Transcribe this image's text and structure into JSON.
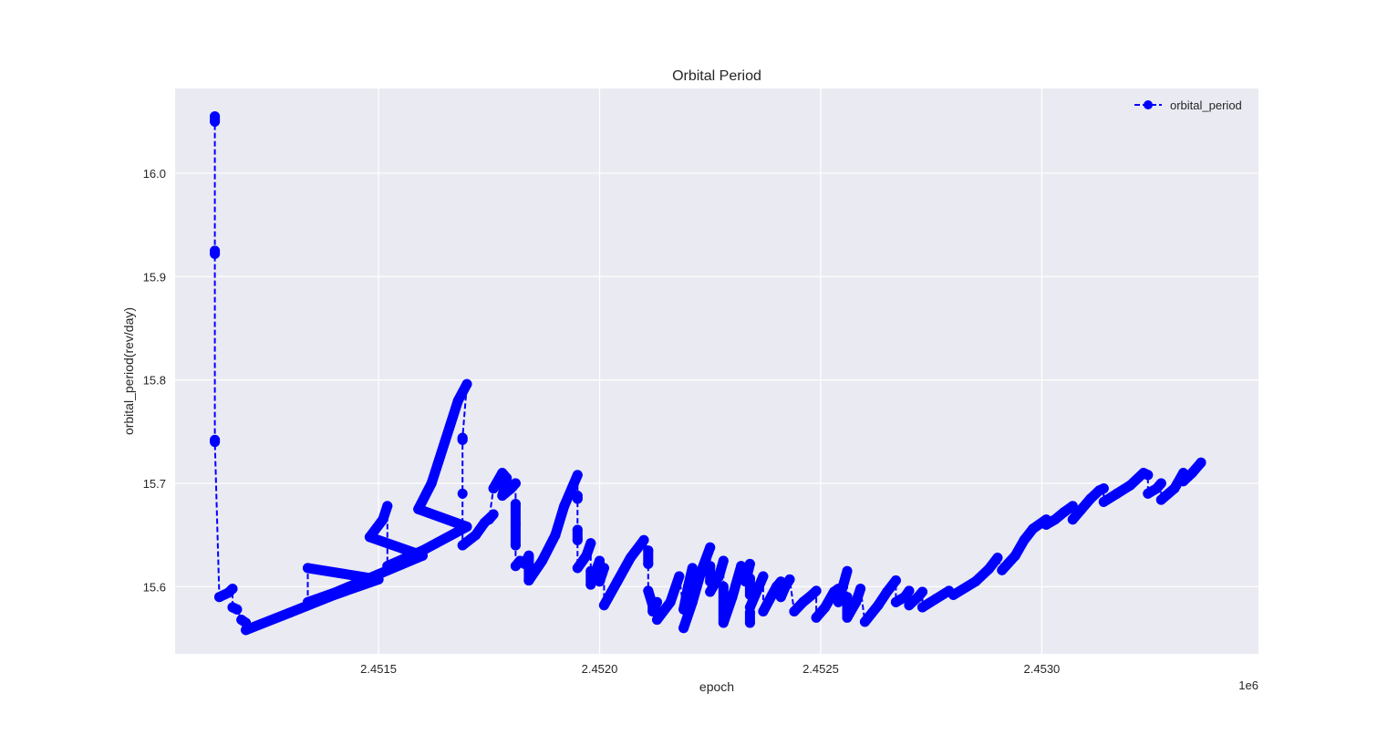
{
  "chart_data": {
    "type": "line",
    "title": "Orbital Period",
    "xlabel": "epoch",
    "ylabel": "orbital_period(rev/day)",
    "x_offset_label": "1e6",
    "x_scale_factor": 1000000,
    "xlim": [
      2.45104,
      2.45349
    ],
    "ylim": [
      15.535,
      16.082
    ],
    "x_ticks": [
      2.4515,
      2.452,
      2.4525,
      2.453
    ],
    "x_tick_labels": [
      "2.4515",
      "2.4520",
      "2.4525",
      "2.4530"
    ],
    "y_ticks": [
      15.6,
      15.7,
      15.8,
      15.9,
      16.0
    ],
    "y_tick_labels": [
      "15.6",
      "15.7",
      "15.8",
      "15.9",
      "16.0"
    ],
    "grid": true,
    "legend_position": "top-right",
    "series": [
      {
        "name": "orbital_period",
        "color": "#0000ff",
        "line_style": "dashed",
        "marker": "circle",
        "segments": [
          [
            [
              2.45113,
              16.055
            ],
            [
              2.45113,
              16.05
            ]
          ],
          [
            [
              2.45113,
              15.925
            ],
            [
              2.45113,
              15.922
            ]
          ],
          [
            [
              2.45113,
              15.742
            ],
            [
              2.45113,
              15.74
            ]
          ],
          [
            [
              2.45114,
              15.59
            ],
            [
              2.45116,
              15.594
            ],
            [
              2.45117,
              15.598
            ]
          ],
          [
            [
              2.45117,
              15.58
            ],
            [
              2.45118,
              15.578
            ]
          ],
          [
            [
              2.45119,
              15.568
            ],
            [
              2.4512,
              15.565
            ]
          ],
          [
            [
              2.4512,
              15.558
            ],
            [
              2.4513,
              15.575
            ],
            [
              2.4514,
              15.592
            ],
            [
              2.4515,
              15.607
            ],
            [
              2.45134,
              15.618
            ]
          ],
          [
            [
              2.45134,
              15.585
            ],
            [
              2.4514,
              15.594
            ],
            [
              2.4515,
              15.612
            ],
            [
              2.4516,
              15.63
            ],
            [
              2.45148,
              15.648
            ],
            [
              2.45151,
              15.665
            ],
            [
              2.45152,
              15.678
            ]
          ],
          [
            [
              2.45152,
              15.62
            ],
            [
              2.4516,
              15.635
            ],
            [
              2.4517,
              15.658
            ],
            [
              2.45159,
              15.675
            ],
            [
              2.45162,
              15.7
            ],
            [
              2.45165,
              15.74
            ],
            [
              2.45168,
              15.78
            ],
            [
              2.4517,
              15.796
            ]
          ],
          [
            [
              2.45169,
              15.744
            ],
            [
              2.45169,
              15.742
            ]
          ],
          [
            [
              2.45169,
              15.69
            ]
          ],
          [
            [
              2.45169,
              15.64
            ],
            [
              2.45172,
              15.65
            ],
            [
              2.45174,
              15.662
            ],
            [
              2.45176,
              15.67
            ],
            [
              2.45175,
              15.665
            ]
          ],
          [
            [
              2.45176,
              15.695
            ],
            [
              2.45178,
              15.71
            ],
            [
              2.45179,
              15.705
            ],
            [
              2.45178,
              15.688
            ],
            [
              2.4518,
              15.695
            ],
            [
              2.45181,
              15.7
            ]
          ],
          [
            [
              2.45181,
              15.68
            ],
            [
              2.45181,
              15.66
            ],
            [
              2.45181,
              15.64
            ]
          ],
          [
            [
              2.45181,
              15.62
            ],
            [
              2.45182,
              15.625
            ],
            [
              2.45183,
              15.622
            ],
            [
              2.45184,
              15.63
            ],
            [
              2.45184,
              15.606
            ]
          ],
          [
            [
              2.45184,
              15.606
            ],
            [
              2.45187,
              15.625
            ],
            [
              2.4519,
              15.65
            ],
            [
              2.45192,
              15.678
            ],
            [
              2.45195,
              15.708
            ]
          ],
          [
            [
              2.45195,
              15.688
            ],
            [
              2.45195,
              15.685
            ]
          ],
          [
            [
              2.45195,
              15.655
            ],
            [
              2.45195,
              15.645
            ]
          ],
          [
            [
              2.45195,
              15.618
            ],
            [
              2.45197,
              15.63
            ],
            [
              2.45198,
              15.642
            ]
          ],
          [
            [
              2.45198,
              15.615
            ],
            [
              2.45198,
              15.602
            ],
            [
              2.452,
              15.625
            ],
            [
              2.452,
              15.605
            ],
            [
              2.45201,
              15.618
            ]
          ],
          [
            [
              2.45201,
              15.582
            ],
            [
              2.45204,
              15.605
            ],
            [
              2.45207,
              15.628
            ],
            [
              2.4521,
              15.645
            ]
          ],
          [
            [
              2.45211,
              15.635
            ],
            [
              2.45211,
              15.622
            ]
          ],
          [
            [
              2.45211,
              15.596
            ],
            [
              2.45212,
              15.582
            ],
            [
              2.45212,
              15.576
            ],
            [
              2.45213,
              15.585
            ]
          ],
          [
            [
              2.45213,
              15.568
            ],
            [
              2.45216,
              15.585
            ],
            [
              2.45218,
              15.61
            ]
          ],
          [
            [
              2.45219,
              15.578
            ],
            [
              2.4522,
              15.6
            ],
            [
              2.45221,
              15.618
            ]
          ],
          [
            [
              2.45219,
              15.56
            ],
            [
              2.45221,
              15.585
            ],
            [
              2.45223,
              15.615
            ],
            [
              2.45225,
              15.638
            ]
          ],
          [
            [
              2.45225,
              15.62
            ],
            [
              2.45225,
              15.605
            ]
          ],
          [
            [
              2.45225,
              15.595
            ],
            [
              2.45227,
              15.61
            ],
            [
              2.45228,
              15.625
            ]
          ],
          [
            [
              2.45228,
              15.6
            ],
            [
              2.45228,
              15.565
            ],
            [
              2.4523,
              15.59
            ],
            [
              2.45232,
              15.62
            ],
            [
              2.45233,
              15.605
            ],
            [
              2.45234,
              15.622
            ]
          ],
          [
            [
              2.45234,
              15.608
            ],
            [
              2.45234,
              15.592
            ]
          ],
          [
            [
              2.45234,
              15.575
            ],
            [
              2.45234,
              15.565
            ]
          ],
          [
            [
              2.45234,
              15.58
            ],
            [
              2.45236,
              15.6
            ],
            [
              2.45237,
              15.61
            ]
          ],
          [
            [
              2.45237,
              15.576
            ],
            [
              2.45239,
              15.592
            ],
            [
              2.4524,
              15.6
            ],
            [
              2.45241,
              15.605
            ]
          ],
          [
            [
              2.45241,
              15.59
            ],
            [
              2.45242,
              15.6
            ],
            [
              2.45243,
              15.607
            ]
          ],
          [
            [
              2.45244,
              15.576
            ],
            [
              2.45246,
              15.585
            ],
            [
              2.45248,
              15.592
            ],
            [
              2.45249,
              15.596
            ]
          ],
          [
            [
              2.45249,
              15.57
            ],
            [
              2.45251,
              15.58
            ],
            [
              2.45253,
              15.595
            ],
            [
              2.45254,
              15.598
            ]
          ],
          [
            [
              2.45254,
              15.585
            ],
            [
              2.45255,
              15.6
            ],
            [
              2.45256,
              15.615
            ]
          ],
          [
            [
              2.45256,
              15.59
            ],
            [
              2.45256,
              15.57
            ],
            [
              2.45258,
              15.585
            ],
            [
              2.45259,
              15.598
            ]
          ],
          [
            [
              2.4526,
              15.566
            ],
            [
              2.45263,
              15.582
            ],
            [
              2.45265,
              15.595
            ],
            [
              2.45267,
              15.606
            ]
          ],
          [
            [
              2.45267,
              15.585
            ],
            [
              2.45269,
              15.59
            ],
            [
              2.4527,
              15.596
            ]
          ],
          [
            [
              2.4527,
              15.582
            ],
            [
              2.45272,
              15.59
            ],
            [
              2.45273,
              15.595
            ]
          ],
          [
            [
              2.45273,
              15.58
            ],
            [
              2.45276,
              15.588
            ],
            [
              2.45279,
              15.596
            ]
          ],
          [
            [
              2.4528,
              15.592
            ],
            [
              2.45285,
              15.605
            ],
            [
              2.45288,
              15.617
            ],
            [
              2.4529,
              15.628
            ]
          ],
          [
            [
              2.45291,
              15.616
            ],
            [
              2.45294,
              15.63
            ],
            [
              2.45296,
              15.645
            ],
            [
              2.45298,
              15.656
            ],
            [
              2.45301,
              15.665
            ]
          ],
          [
            [
              2.45301,
              15.66
            ],
            [
              2.45303,
              15.665
            ],
            [
              2.45305,
              15.672
            ],
            [
              2.45307,
              15.678
            ]
          ],
          [
            [
              2.45307,
              15.665
            ],
            [
              2.45309,
              15.675
            ],
            [
              2.45311,
              15.685
            ],
            [
              2.45313,
              15.693
            ],
            [
              2.45314,
              15.695
            ]
          ],
          [
            [
              2.45314,
              15.682
            ],
            [
              2.45317,
              15.69
            ],
            [
              2.4532,
              15.698
            ],
            [
              2.45323,
              15.71
            ],
            [
              2.45324,
              15.708
            ]
          ],
          [
            [
              2.45324,
              15.69
            ],
            [
              2.45326,
              15.695
            ],
            [
              2.45327,
              15.7
            ]
          ],
          [
            [
              2.45327,
              15.684
            ],
            [
              2.4533,
              15.695
            ],
            [
              2.45332,
              15.71
            ]
          ],
          [
            [
              2.45332,
              15.702
            ],
            [
              2.45334,
              15.71
            ],
            [
              2.45336,
              15.72
            ]
          ]
        ]
      }
    ]
  }
}
